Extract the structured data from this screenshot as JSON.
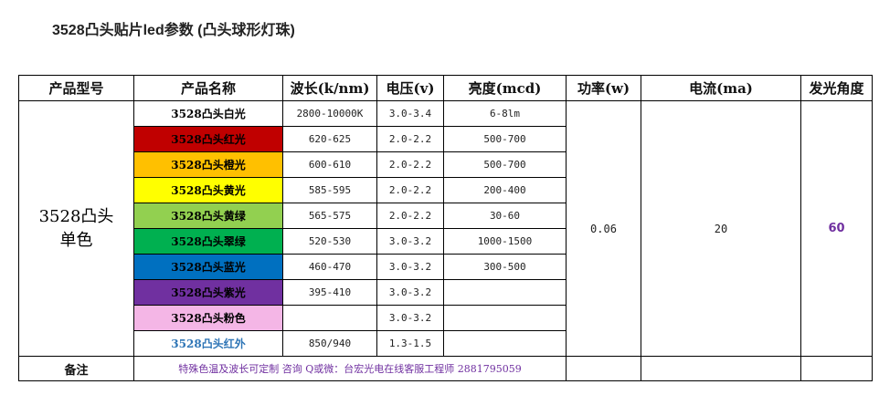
{
  "title": "3528凸头贴片led参数 (凸头球形灯珠)",
  "colors": {
    "accent_purple": "#7030a0",
    "ir_blue": "#2e75b6"
  },
  "headers": [
    "产品型号",
    "产品名称",
    "波长(k/nm)",
    "电压(v)",
    "亮度(mcd)",
    "功率(w)",
    "电流(ma)",
    "发光角度"
  ],
  "group_label": "3528凸头单色",
  "shared": {
    "power": "0.06",
    "current": "20",
    "angle": "60"
  },
  "rows": [
    {
      "name": "3528凸头白光",
      "bg": "#ffffff",
      "fg": "#000000",
      "wavelength": "2800-10000K",
      "voltage": "3.0-3.4",
      "brightness": "6-8lm"
    },
    {
      "name": "3528凸头红光",
      "bg": "#c00000",
      "fg": "#000000",
      "wavelength": "620-625",
      "voltage": "2.0-2.2",
      "brightness": "500-700"
    },
    {
      "name": "3528凸头橙光",
      "bg": "#ffc000",
      "fg": "#000000",
      "wavelength": "600-610",
      "voltage": "2.0-2.2",
      "brightness": "500-700"
    },
    {
      "name": "3528凸头黄光",
      "bg": "#ffff00",
      "fg": "#000000",
      "wavelength": "585-595",
      "voltage": "2.0-2.2",
      "brightness": "200-400"
    },
    {
      "name": "3528凸头黄绿",
      "bg": "#92d050",
      "fg": "#000000",
      "wavelength": "565-575",
      "voltage": "2.0-2.2",
      "brightness": "30-60"
    },
    {
      "name": "3528凸头翠绿",
      "bg": "#00b050",
      "fg": "#000000",
      "wavelength": "520-530",
      "voltage": "3.0-3.2",
      "brightness": "1000-1500"
    },
    {
      "name": "3528凸头蓝光",
      "bg": "#0070c0",
      "fg": "#000000",
      "wavelength": "460-470",
      "voltage": "3.0-3.2",
      "brightness": "300-500"
    },
    {
      "name": "3528凸头紫光",
      "bg": "#7030a0",
      "fg": "#000000",
      "wavelength": "395-410",
      "voltage": "3.0-3.2",
      "brightness": ""
    },
    {
      "name": "3528凸头粉色",
      "bg": "#f4b6e6",
      "fg": "#000000",
      "wavelength": "",
      "voltage": "3.0-3.2",
      "brightness": ""
    },
    {
      "name": "3528凸头红外",
      "bg": "#ffffff",
      "fg": "#2e75b6",
      "wavelength": "850/940",
      "voltage": "1.3-1.5",
      "brightness": ""
    }
  ],
  "note": {
    "label": "备注",
    "text": "特殊色温及波长可定制 咨询 Q或微：台宏光电在线客服工程师 2881795059"
  }
}
